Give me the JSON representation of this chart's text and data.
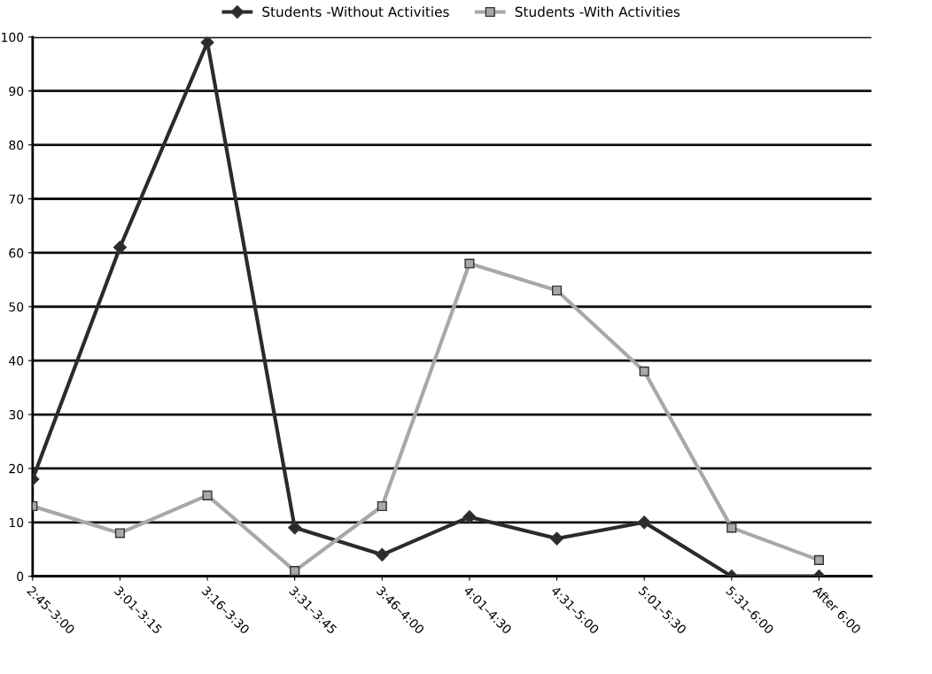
{
  "chart_data": {
    "type": "line",
    "categories": [
      "2:45–3:00",
      "3:01–3:15",
      "3:16–3:30",
      "3:31–3:45",
      "3:46–4:00",
      "4:01–4:30",
      "4:31–5:00",
      "5:01–5:30",
      "5:31–6:00",
      "After 6:00"
    ],
    "series": [
      {
        "name": "Students -Without Activities",
        "color": "#2b2b2b",
        "marker": "diamond",
        "values": [
          18,
          61,
          99,
          9,
          4,
          11,
          7,
          10,
          0,
          0
        ]
      },
      {
        "name": "Students -With Activities",
        "color": "#a8a8a8",
        "marker": "square",
        "values": [
          13,
          8,
          15,
          1,
          13,
          58,
          53,
          38,
          9,
          3
        ]
      }
    ],
    "ylim": [
      0,
      100
    ],
    "yticks": [
      0,
      10,
      20,
      30,
      40,
      50,
      60,
      70,
      80,
      90,
      100
    ],
    "grid": "y",
    "legend": "top",
    "line_style": "solid"
  }
}
